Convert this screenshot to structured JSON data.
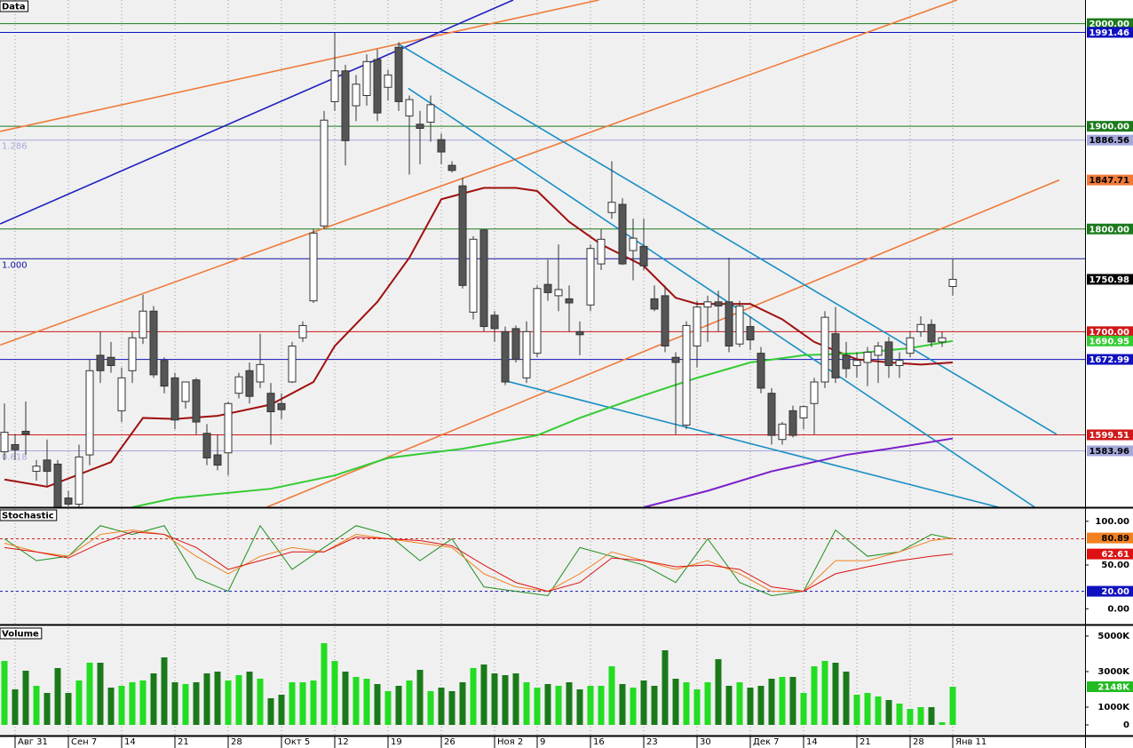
{
  "chart_data": [
    {
      "type": "candlestick",
      "title": "Data",
      "categories": [
        null,
        "Авг 31",
        null,
        null,
        null,
        null,
        "Сен 7",
        null,
        null,
        null,
        null,
        "14",
        null,
        null,
        null,
        null,
        "21",
        null,
        null,
        null,
        null,
        "28",
        null,
        null,
        null,
        null,
        "Окт 5",
        null,
        null,
        null,
        null,
        "12",
        null,
        null,
        null,
        null,
        "19",
        null,
        null,
        null,
        null,
        "26",
        null,
        null,
        null,
        null,
        "Ноя 2",
        null,
        null,
        null,
        "9",
        null,
        null,
        null,
        null,
        "16",
        null,
        null,
        null,
        null,
        "23",
        null,
        null,
        null,
        null,
        "30",
        null,
        null,
        null,
        null,
        "Дек 7",
        null,
        null,
        null,
        null,
        "14",
        null,
        null,
        null,
        null,
        "21",
        null,
        null,
        null,
        null,
        "28",
        null,
        null,
        null,
        "Янв 11"
      ],
      "ohlc": [
        [
          1583,
          1630,
          1575,
          1602
        ],
        [
          1590,
          1600,
          1575,
          1585
        ],
        [
          1603,
          1632,
          1580,
          1600
        ],
        [
          1564,
          1575,
          1555,
          1569
        ],
        [
          1575,
          1595,
          1550,
          1564
        ],
        [
          1571,
          1575,
          1525,
          1529
        ],
        [
          1538,
          1545,
          1530,
          1532
        ],
        [
          1532,
          1590,
          1528,
          1578
        ],
        [
          1580,
          1673,
          1570,
          1662
        ],
        [
          1677,
          1700,
          1650,
          1662
        ],
        [
          1675,
          1690,
          1660,
          1667
        ],
        [
          1623,
          1665,
          1612,
          1655
        ],
        [
          1662,
          1700,
          1650,
          1694
        ],
        [
          1694,
          1736,
          1688,
          1720
        ],
        [
          1720,
          1725,
          1655,
          1658
        ],
        [
          1672,
          1675,
          1640,
          1647
        ],
        [
          1655,
          1660,
          1605,
          1614
        ],
        [
          1632,
          1650,
          1625,
          1651
        ],
        [
          1653,
          1655,
          1600,
          1612
        ],
        [
          1601,
          1610,
          1570,
          1577
        ],
        [
          1580,
          1600,
          1565,
          1570
        ],
        [
          1582,
          1632,
          1560,
          1630
        ],
        [
          1640,
          1660,
          1635,
          1656
        ],
        [
          1662,
          1670,
          1630,
          1637
        ],
        [
          1651,
          1698,
          1645,
          1668
        ],
        [
          1640,
          1650,
          1590,
          1622
        ],
        [
          1630,
          1640,
          1615,
          1624
        ],
        [
          1651,
          1690,
          1650,
          1686
        ],
        [
          1694,
          1710,
          1690,
          1706
        ],
        [
          1730,
          1800,
          1728,
          1796
        ],
        [
          1803,
          1915,
          1800,
          1906
        ],
        [
          1924,
          1991,
          1915,
          1954
        ],
        [
          1954,
          1960,
          1862,
          1886
        ],
        [
          1920,
          1950,
          1905,
          1941
        ],
        [
          1930,
          1970,
          1920,
          1963
        ],
        [
          1965,
          1975,
          1905,
          1913
        ],
        [
          1938,
          1955,
          1925,
          1950
        ],
        [
          1977,
          1982,
          1915,
          1924
        ],
        [
          1910,
          1930,
          1853,
          1926
        ],
        [
          1902,
          1915,
          1863,
          1898
        ],
        [
          1904,
          1930,
          1885,
          1921
        ],
        [
          1887,
          1893,
          1863,
          1875
        ],
        [
          1862,
          1866,
          1855,
          1857
        ],
        [
          1842,
          1850,
          1742,
          1745
        ],
        [
          1719,
          1793,
          1712,
          1790
        ],
        [
          1799,
          1800,
          1700,
          1705
        ],
        [
          1716,
          1720,
          1690,
          1703
        ],
        [
          1700,
          1705,
          1648,
          1651
        ],
        [
          1703,
          1706,
          1670,
          1673
        ],
        [
          1655,
          1710,
          1650,
          1700
        ],
        [
          1679,
          1745,
          1675,
          1742
        ],
        [
          1746,
          1770,
          1730,
          1738
        ],
        [
          1735,
          1785,
          1720,
          1741
        ],
        [
          1732,
          1745,
          1700,
          1728
        ],
        [
          1700,
          1710,
          1677,
          1697
        ],
        [
          1726,
          1785,
          1720,
          1781
        ],
        [
          1766,
          1800,
          1760,
          1790
        ],
        [
          1816,
          1866,
          1810,
          1826
        ],
        [
          1824,
          1830,
          1765,
          1766
        ],
        [
          1779,
          1810,
          1750,
          1791
        ],
        [
          1783,
          1810,
          1760,
          1764
        ],
        [
          1732,
          1745,
          1720,
          1722
        ],
        [
          1735,
          1745,
          1680,
          1686
        ],
        [
          1675,
          1680,
          1600,
          1670
        ],
        [
          1609,
          1710,
          1605,
          1706
        ],
        [
          1686,
          1730,
          1665,
          1724
        ],
        [
          1724,
          1735,
          1690,
          1729
        ],
        [
          1729,
          1740,
          1700,
          1725
        ],
        [
          1729,
          1772,
          1680,
          1686
        ],
        [
          1688,
          1730,
          1685,
          1725
        ],
        [
          1705,
          1715,
          1682,
          1692
        ],
        [
          1679,
          1685,
          1640,
          1645
        ],
        [
          1640,
          1645,
          1590,
          1599
        ],
        [
          1595,
          1612,
          1590,
          1610
        ],
        [
          1623,
          1628,
          1597,
          1599
        ],
        [
          1616,
          1628,
          1605,
          1627
        ],
        [
          1630,
          1655,
          1600,
          1651
        ],
        [
          1651,
          1720,
          1645,
          1714
        ],
        [
          1698,
          1724,
          1650,
          1655
        ],
        [
          1677,
          1690,
          1655,
          1664
        ],
        [
          1667,
          1680,
          1655,
          1672
        ],
        [
          1670,
          1685,
          1647,
          1680
        ],
        [
          1677,
          1690,
          1650,
          1686
        ],
        [
          1690,
          1695,
          1655,
          1667
        ],
        [
          1667,
          1680,
          1655,
          1672
        ],
        [
          1679,
          1700,
          1675,
          1694
        ],
        [
          1700,
          1715,
          1695,
          1707
        ],
        [
          1707,
          1712,
          1685,
          1690
        ],
        [
          1690,
          1700,
          1685,
          1694
        ],
        [
          1744,
          1771,
          1735,
          1750.98
        ]
      ],
      "up_color": "#ffffff",
      "down_color": "#555555",
      "ylim": [
        1529,
        2023
      ],
      "levels": [
        {
          "value": 2000,
          "label": "2000.00",
          "color": "#1b7a1b"
        },
        {
          "value": 1991.46,
          "label": "1991.46",
          "color": "#1010c0"
        },
        {
          "value": 1900,
          "label": "1900.00",
          "color": "#1b7a1b"
        },
        {
          "value": 1886.56,
          "label": "1886.56",
          "color": "#a4a8dc",
          "fib": "1.286"
        },
        {
          "value": 1800,
          "label": "1800.00",
          "color": "#1b7a1b"
        },
        {
          "value": 1771,
          "color": "#1010a0",
          "fib": "1.000"
        },
        {
          "value": 1700,
          "label": "1700.00",
          "color": "#d01818"
        },
        {
          "value": 1672.99,
          "label": "1672.99",
          "color": "#1010c0"
        },
        {
          "value": 1599.51,
          "label": "1599.51",
          "color": "#d01818"
        },
        {
          "value": 1583.96,
          "label": "1583.96",
          "color": "#a4a8dc",
          "fib": "0.618"
        }
      ],
      "badges": [
        {
          "value": 1847.71,
          "label": "1847.71",
          "color": "#f07a3a"
        },
        {
          "value": 1750.98,
          "label": "1750.98",
          "color": "#000000"
        },
        {
          "value": 1690.95,
          "label": "1690.95",
          "color": "#33cc33"
        }
      ],
      "trendlines": [
        {
          "color": "#f07a3a",
          "x": [
            -0.4,
            55.8
          ],
          "values": [
            1895,
            2023
          ]
        },
        {
          "color": "#f07a3a",
          "x": [
            -0.4,
            89.4
          ],
          "values": [
            1687,
            2023
          ]
        },
        {
          "color": "#f07a3a",
          "x": [
            24.6,
            99
          ],
          "values": [
            1529,
            1847.71
          ]
        },
        {
          "color": "#2020c0",
          "x": [
            -0.4,
            47.75
          ],
          "values": [
            1805,
            2023
          ]
        },
        {
          "color": "#1a8fc4",
          "x": [
            37,
            98.75
          ],
          "values": [
            1980,
            1600
          ]
        },
        {
          "color": "#1a8fc4",
          "x": [
            37.9,
            96.7
          ],
          "values": [
            1937,
            1529
          ]
        },
        {
          "color": "#1a8fc4",
          "x": [
            46.7,
            93.3
          ],
          "values": [
            1653,
            1529
          ]
        }
      ],
      "overlays": [
        {
          "color": "#a01010",
          "x": [
            0,
            4,
            10,
            13,
            16,
            20,
            25,
            29,
            31,
            35,
            38,
            41,
            45,
            48,
            50,
            53,
            56,
            60,
            63,
            65,
            70,
            73,
            76,
            80,
            83,
            86,
            89
          ],
          "values": [
            1556,
            1549,
            1573,
            1616,
            1615,
            1618,
            1629,
            1651,
            1686,
            1729,
            1772,
            1829,
            1840,
            1840,
            1837,
            1807,
            1785,
            1764,
            1733,
            1727,
            1727,
            1712,
            1690,
            1673,
            1670,
            1668,
            1670
          ]
        },
        {
          "color": "#33cc33",
          "x": [
            12,
            16,
            25,
            31,
            36,
            43,
            50,
            54,
            60,
            65,
            70,
            75,
            80,
            85,
            89
          ],
          "values": [
            1529,
            1538,
            1547,
            1560,
            1577,
            1586,
            1599,
            1616,
            1638,
            1655,
            1670,
            1677,
            1679,
            1684,
            1690.95
          ]
        },
        {
          "color": "#7a1fc9",
          "x": [
            60,
            66,
            72,
            79,
            83,
            89
          ],
          "values": [
            1529,
            1545,
            1564,
            1580,
            1586,
            1596
          ]
        }
      ]
    },
    {
      "type": "line",
      "title": "Stochastic",
      "ylim": [
        -18,
        114
      ],
      "yticks": [
        {
          "value": 100,
          "label": "100.00"
        },
        {
          "value": 50,
          "label": "50.00"
        },
        {
          "value": 0,
          "label": "0.00"
        }
      ],
      "series": [
        {
          "color": "#1f8f1f",
          "x": [
            0,
            3,
            6,
            9,
            12,
            15,
            18,
            21,
            24,
            27,
            30,
            33,
            36,
            39,
            42,
            45,
            48,
            51,
            54,
            57,
            60,
            63,
            66,
            69,
            72,
            75,
            78,
            81,
            84,
            87,
            89
          ],
          "values": [
            80,
            55,
            60,
            95,
            85,
            95,
            35,
            20,
            95,
            45,
            70,
            95,
            85,
            55,
            80,
            25,
            20,
            15,
            70,
            60,
            50,
            30,
            80,
            30,
            15,
            20,
            90,
            60,
            65,
            85,
            80
          ]
        },
        {
          "color": "#f08020",
          "x": [
            0,
            3,
            6,
            9,
            12,
            15,
            18,
            21,
            24,
            27,
            30,
            33,
            36,
            39,
            42,
            45,
            48,
            51,
            54,
            57,
            60,
            63,
            66,
            69,
            72,
            75,
            78,
            81,
            84,
            87,
            89
          ],
          "values": [
            75,
            65,
            60,
            85,
            90,
            85,
            60,
            40,
            60,
            70,
            65,
            85,
            80,
            75,
            70,
            40,
            25,
            20,
            40,
            65,
            55,
            45,
            55,
            40,
            20,
            20,
            55,
            55,
            65,
            78,
            80.89
          ]
        },
        {
          "color": "#dd1111",
          "x": [
            0,
            3,
            6,
            9,
            12,
            15,
            18,
            21,
            24,
            27,
            30,
            33,
            36,
            39,
            42,
            45,
            48,
            51,
            54,
            57,
            60,
            63,
            66,
            69,
            72,
            75,
            78,
            81,
            84,
            87,
            89
          ],
          "values": [
            70,
            65,
            58,
            75,
            88,
            85,
            70,
            45,
            55,
            65,
            65,
            82,
            80,
            78,
            72,
            50,
            30,
            20,
            30,
            58,
            55,
            48,
            50,
            45,
            25,
            20,
            40,
            48,
            55,
            60,
            62.61
          ]
        }
      ],
      "levels": [
        {
          "value": 80,
          "color": "#d01818"
        },
        {
          "value": 20,
          "label": "20.00",
          "color": "#1010c0"
        }
      ],
      "badges": [
        {
          "value": 80.89,
          "label": "80.89",
          "color": "#f08020"
        },
        {
          "value": 62.61,
          "label": "62.61",
          "color": "#dd1111"
        }
      ]
    },
    {
      "type": "bar",
      "title": "Volume",
      "ylim": [
        -600,
        5500
      ],
      "yticks": [
        {
          "value": 5000,
          "label": "5000K"
        },
        {
          "value": 3000,
          "label": "3000K"
        },
        {
          "value": 1000,
          "label": "1000K"
        },
        0
      ],
      "values": [
        3600,
        2000,
        3050,
        2200,
        1800,
        3200,
        1800,
        2500,
        3500,
        3500,
        2100,
        2200,
        2400,
        2500,
        2900,
        3800,
        2400,
        2300,
        2400,
        2900,
        3000,
        2500,
        2800,
        3000,
        2600,
        1500,
        1700,
        2400,
        2400,
        2500,
        4600,
        3600,
        3000,
        2700,
        2600,
        2300,
        1900,
        2200,
        2500,
        3100,
        1900,
        2100,
        1900,
        2400,
        3200,
        3400,
        2900,
        2800,
        2900,
        2400,
        2100,
        2300,
        2200,
        2400,
        2000,
        2200,
        2200,
        3300,
        2300,
        2100,
        2500,
        2200,
        4200,
        2600,
        2400,
        2000,
        2400,
        3700,
        2200,
        2400,
        2100,
        2200,
        2600,
        2700,
        2700,
        1800,
        3300,
        3600,
        3500,
        3000,
        1700,
        1800,
        1600,
        1400,
        1200,
        900,
        1000,
        1000,
        150,
        2148
      ],
      "up_color": "#22dd22",
      "down_color": "#1a7a1a",
      "badges": [
        {
          "value": 2148,
          "label": "2148K",
          "color": "#22bb22"
        }
      ]
    }
  ]
}
